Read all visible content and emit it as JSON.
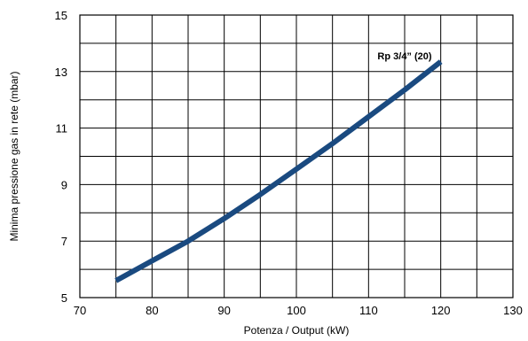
{
  "chart_data": {
    "type": "line",
    "xlabel": "Potenza / Output (kW)",
    "ylabel": "Minima pressione gas in rete (mbar)",
    "xlim": [
      70,
      130
    ],
    "ylim": [
      5,
      15
    ],
    "x_ticks": [
      70,
      80,
      90,
      100,
      110,
      120,
      130
    ],
    "y_ticks": [
      5,
      7,
      9,
      11,
      13,
      15
    ],
    "x_minor_step": 5,
    "y_minor_step": 1,
    "grid": true,
    "series": [
      {
        "name": "Rp 3/4\" (20)",
        "color": "#1a4a80",
        "x": [
          75,
          80,
          85,
          90,
          95,
          100,
          105,
          110,
          115,
          120
        ],
        "y": [
          5.6,
          6.3,
          7.0,
          7.8,
          8.65,
          9.55,
          10.45,
          11.4,
          12.35,
          13.35
        ]
      }
    ],
    "annotations": [
      {
        "text": "Rp 3/4” (20)",
        "x": 115,
        "y": 13.4
      }
    ]
  }
}
